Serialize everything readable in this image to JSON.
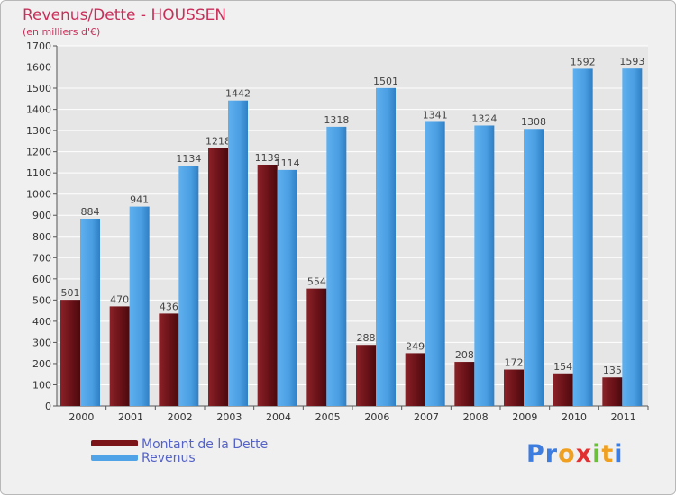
{
  "chart_data": {
    "type": "bar",
    "title": "Revenus/Dette - HOUSSEN",
    "subtitle": "(en milliers d'€)",
    "categories": [
      "2000",
      "2001",
      "2002",
      "2003",
      "2004",
      "2005",
      "2006",
      "2007",
      "2008",
      "2009",
      "2010",
      "2011"
    ],
    "series": [
      {
        "name": "Montant de la Dette",
        "color": "#7a1419",
        "values": [
          501,
          470,
          436,
          1218,
          1139,
          554,
          288,
          249,
          208,
          172,
          154,
          135
        ]
      },
      {
        "name": "Revenus",
        "color": "#4fa3e6",
        "values": [
          884,
          941,
          1134,
          1442,
          1114,
          1318,
          1501,
          1341,
          1324,
          1308,
          1592,
          1593
        ]
      }
    ],
    "ylim": [
      0,
      1700
    ],
    "ytick_step": 100,
    "grid": true,
    "legend_position": "bottom-left"
  },
  "logo": {
    "letters": [
      "P",
      "r",
      "o",
      "x",
      "i",
      "t",
      "i"
    ],
    "colors": [
      "#3d7de0",
      "#3d7de0",
      "#f0a020",
      "#e03030",
      "#6cbf3a",
      "#f0a020",
      "#3d7de0"
    ]
  }
}
